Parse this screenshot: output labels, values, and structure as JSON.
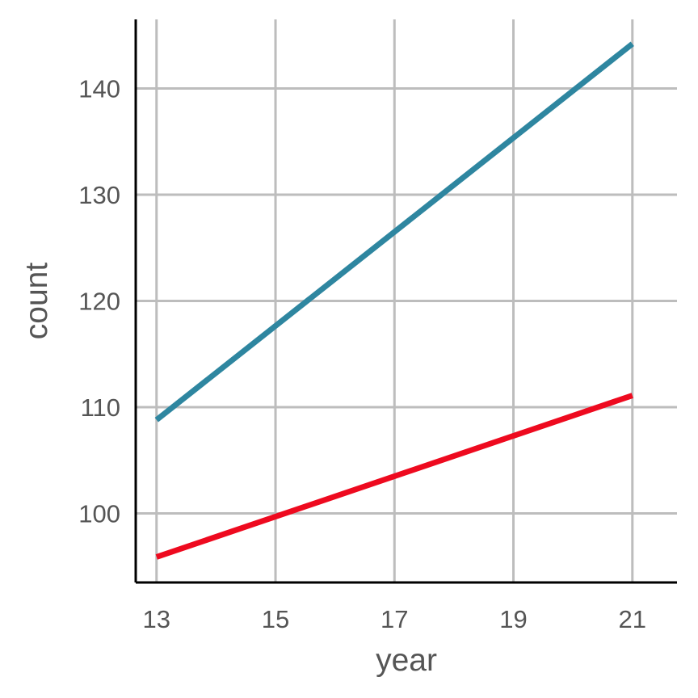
{
  "chart_data": {
    "type": "line",
    "title": "",
    "xlabel": "year",
    "ylabel": "count",
    "xlim": [
      12.65,
      21.75
    ],
    "ylim": [
      93.5,
      146.5
    ],
    "xticks": [
      13,
      15,
      17,
      19,
      21
    ],
    "xtick_labels": [
      "13",
      "15",
      "17",
      "19",
      "21"
    ],
    "yticks": [
      100,
      110,
      120,
      130,
      140
    ],
    "ytick_labels": [
      "100",
      "110",
      "120",
      "130",
      "140"
    ],
    "grid": true,
    "legend": "none",
    "series": [
      {
        "color": "#2e86a0",
        "x": [
          13,
          21
        ],
        "y": [
          108.8,
          144.2
        ]
      },
      {
        "color": "#ee0a1f",
        "x": [
          13,
          21
        ],
        "y": [
          95.9,
          111.1
        ]
      }
    ]
  }
}
